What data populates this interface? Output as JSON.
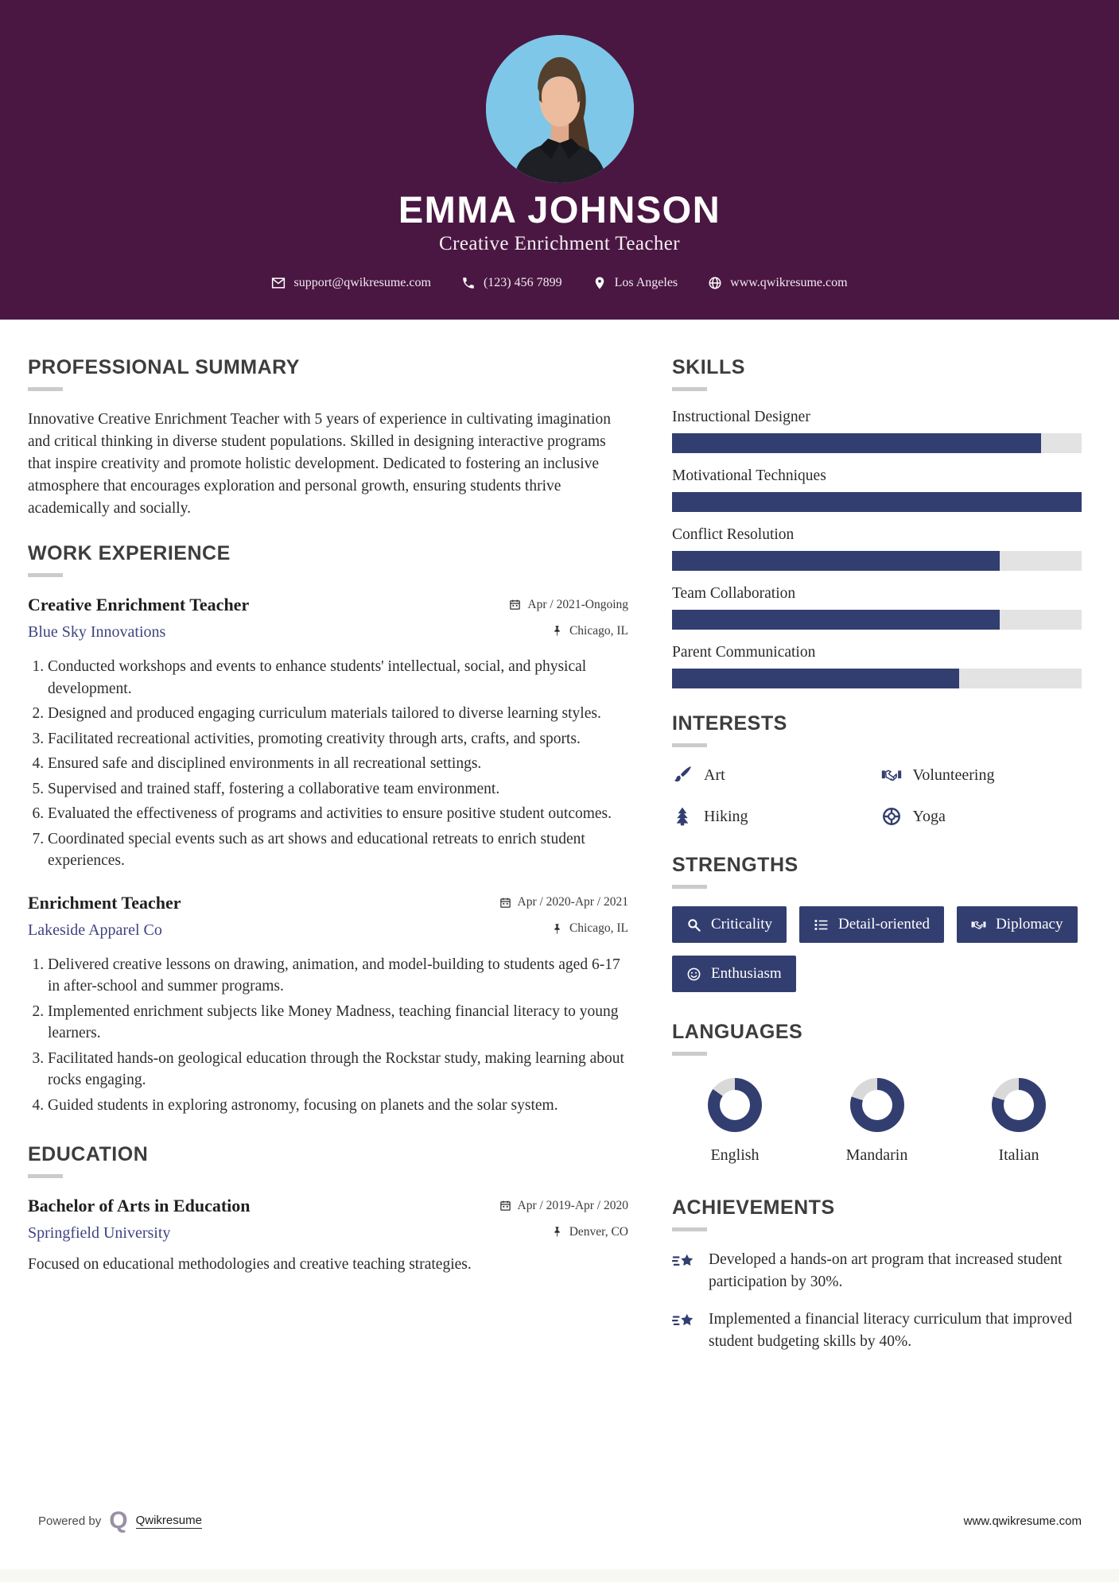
{
  "header": {
    "name": "EMMA JOHNSON",
    "title": "Creative Enrichment Teacher",
    "contact": {
      "email": "support@qwikresume.com",
      "phone": "(123) 456 7899",
      "location": "Los Angeles",
      "website": "www.qwikresume.com"
    }
  },
  "summary": {
    "heading": "PROFESSIONAL SUMMARY",
    "text": "Innovative Creative Enrichment Teacher with 5 years of experience in cultivating imagination and critical thinking in diverse student populations. Skilled in designing interactive programs that inspire creativity and promote holistic development. Dedicated to fostering an inclusive atmosphere that encourages exploration and personal growth, ensuring students thrive academically and socially."
  },
  "work": {
    "heading": "WORK EXPERIENCE",
    "jobs": [
      {
        "title": "Creative Enrichment Teacher",
        "company": "Blue Sky Innovations",
        "dates": "Apr / 2021-Ongoing",
        "location": "Chicago, IL",
        "bullets": [
          "Conducted workshops and events to enhance students' intellectual, social, and physical development.",
          "Designed and produced engaging curriculum materials tailored to diverse learning styles.",
          "Facilitated recreational activities, promoting creativity through arts, crafts, and sports.",
          "Ensured safe and disciplined environments in all recreational settings.",
          "Supervised and trained staff, fostering a collaborative team environment.",
          "Evaluated the effectiveness of programs and activities to ensure positive student outcomes.",
          "Coordinated special events such as art shows and educational retreats to enrich student experiences."
        ]
      },
      {
        "title": "Enrichment Teacher",
        "company": "Lakeside Apparel Co",
        "dates": "Apr / 2020-Apr / 2021",
        "location": "Chicago, IL",
        "bullets": [
          "Delivered creative lessons on drawing, animation, and model-building to students aged 6-17 in after-school and summer programs.",
          "Implemented enrichment subjects like Money Madness, teaching financial literacy to young learners.",
          "Facilitated hands-on geological education through the Rockstar study, making learning about rocks engaging.",
          "Guided students in exploring astronomy, focusing on planets and the solar system."
        ]
      }
    ]
  },
  "education": {
    "heading": "EDUCATION",
    "degree": "Bachelor of Arts in Education",
    "school": "Springfield University",
    "dates": "Apr / 2019-Apr / 2020",
    "location": "Denver, CO",
    "description": "Focused on educational methodologies and creative teaching strategies."
  },
  "skills": {
    "heading": "SKILLS",
    "items": [
      {
        "label": "Instructional Designer",
        "percent": 90
      },
      {
        "label": "Motivational Techniques",
        "percent": 100
      },
      {
        "label": "Conflict Resolution",
        "percent": 80
      },
      {
        "label": "Team Collaboration",
        "percent": 80
      },
      {
        "label": "Parent Communication",
        "percent": 70
      }
    ]
  },
  "interests": {
    "heading": "INTERESTS",
    "items": [
      {
        "label": "Art",
        "icon": "paintbrush-icon"
      },
      {
        "label": "Volunteering",
        "icon": "handshake-icon"
      },
      {
        "label": "Hiking",
        "icon": "tree-icon"
      },
      {
        "label": "Yoga",
        "icon": "yoga-ball-icon"
      }
    ]
  },
  "strengths": {
    "heading": "STRENGTHS",
    "items": [
      {
        "label": "Criticality",
        "icon": "magnifier-icon"
      },
      {
        "label": "Detail-oriented",
        "icon": "list-icon"
      },
      {
        "label": "Diplomacy",
        "icon": "handshake-icon"
      },
      {
        "label": "Enthusiasm",
        "icon": "smiley-icon"
      }
    ]
  },
  "languages": {
    "heading": "LANGUAGES",
    "items": [
      {
        "label": "English",
        "percent": 85
      },
      {
        "label": "Mandarin",
        "percent": 80
      },
      {
        "label": "Italian",
        "percent": 80
      }
    ]
  },
  "achievements": {
    "heading": "ACHIEVEMENTS",
    "items": [
      "Developed a hands-on art program that increased student participation by 30%.",
      "Implemented a financial literacy curriculum that improved student budgeting skills by 40%."
    ]
  },
  "footer": {
    "powered_by": "Powered by",
    "brand": "Qwikresume",
    "website": "www.qwikresume.com"
  },
  "colors": {
    "header_bg": "#4a1742",
    "accent_navy": "#333e70",
    "donut_track": "#d9d9d9",
    "photo_bg": "#7ec7e8"
  }
}
